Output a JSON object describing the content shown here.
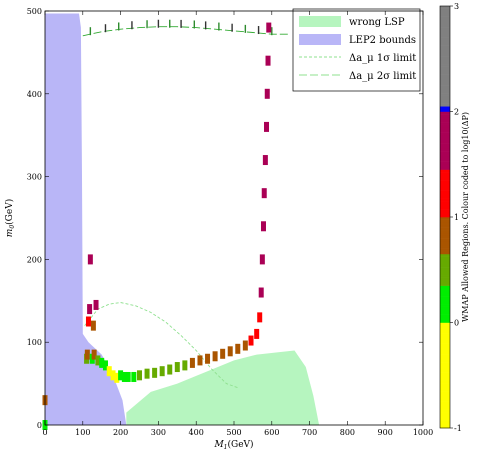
{
  "chart_data": {
    "type": "scatter",
    "xlabel": "M_{1}(GeV)",
    "ylabel": "m_{0}(GeV)",
    "xlim": [
      0,
      1000
    ],
    "ylim": [
      0,
      500
    ],
    "x_ticks": [
      "0",
      "100",
      "200",
      "300",
      "400",
      "500",
      "600",
      "700",
      "800",
      "900",
      "1000"
    ],
    "y_ticks": [
      "0",
      "100",
      "200",
      "300",
      "400",
      "500"
    ],
    "legend_position": "top-right",
    "legend": [
      {
        "label": "wrong LSP",
        "style": "fill",
        "color": "#b6f5bf"
      },
      {
        "label": "LEP2 bounds",
        "style": "fill",
        "color": "#b9b6f7"
      },
      {
        "label": "Δa_μ 1σ limit",
        "style": "dashed-short",
        "color": "#8fe08f"
      },
      {
        "label": "Δa_μ 2σ limit",
        "style": "dashed-long",
        "color": "#8fe08f"
      }
    ],
    "colorbar": {
      "label": "WMAP Allowed Regions. Colour coded to log10(ΔP)",
      "range": [
        -1,
        3
      ],
      "tick_labels": [
        "-1",
        "0",
        "1",
        "2",
        "3"
      ],
      "stops": [
        {
          "value": -1.0,
          "color": "#ffff00"
        },
        {
          "value": -0.001,
          "color": "#ffff00"
        },
        {
          "value": 0.0,
          "color": "#00ee00"
        },
        {
          "value": 0.35,
          "color": "#66aa00"
        },
        {
          "value": 0.65,
          "color": "#aa5500"
        },
        {
          "value": 1.0,
          "color": "#ff0000"
        },
        {
          "value": 1.45,
          "color": "#aa0055"
        },
        {
          "value": 1.99,
          "color": "#880088"
        },
        {
          "value": 2.0,
          "color": "#0000ff"
        },
        {
          "value": 2.05,
          "color": "#808080"
        },
        {
          "value": 3.0,
          "color": "#6e6e6e"
        }
      ]
    },
    "regions": {
      "lep2_bounds": {
        "color": "#b9b6f7",
        "outline": [
          [
            0,
            0
          ],
          [
            0,
            497
          ],
          [
            90,
            497
          ],
          [
            95,
            480
          ],
          [
            98,
            300
          ],
          [
            100,
            110
          ],
          [
            115,
            100
          ],
          [
            150,
            85
          ],
          [
            180,
            60
          ],
          [
            205,
            30
          ],
          [
            215,
            0
          ]
        ]
      },
      "wrong_lsp": {
        "color": "#b6f5bf",
        "outline": [
          [
            215,
            0
          ],
          [
            215,
            15
          ],
          [
            280,
            40
          ],
          [
            350,
            50
          ],
          [
            430,
            65
          ],
          [
            500,
            78
          ],
          [
            560,
            85
          ],
          [
            620,
            88
          ],
          [
            660,
            90
          ],
          [
            690,
            70
          ],
          [
            710,
            35
          ],
          [
            725,
            0
          ]
        ]
      }
    },
    "limits": {
      "one_sigma": [
        [
          105,
          120
        ],
        [
          140,
          140
        ],
        [
          170,
          146
        ],
        [
          200,
          148
        ],
        [
          240,
          144
        ],
        [
          280,
          136
        ],
        [
          320,
          124
        ],
        [
          360,
          108
        ],
        [
          400,
          90
        ],
        [
          440,
          68
        ],
        [
          480,
          50
        ],
        [
          510,
          45
        ]
      ],
      "two_sigma": [
        [
          100,
          470
        ],
        [
          150,
          475
        ],
        [
          200,
          478
        ],
        [
          250,
          480
        ],
        [
          300,
          481
        ],
        [
          350,
          481
        ],
        [
          400,
          480
        ],
        [
          450,
          478
        ],
        [
          500,
          476
        ],
        [
          550,
          474
        ],
        [
          600,
          472
        ],
        [
          650,
          472
        ]
      ],
      "two_sigma_ticks_x": [
        120,
        160,
        195,
        230,
        270,
        300,
        330,
        360,
        395,
        425,
        460,
        495,
        530,
        565,
        600
      ]
    },
    "wmap_points": [
      {
        "x": 110,
        "y": 80,
        "c": 0.6
      },
      {
        "x": 112,
        "y": 85,
        "c": 0.9
      },
      {
        "x": 115,
        "y": 125,
        "c": 1.2
      },
      {
        "x": 118,
        "y": 140,
        "c": 1.6
      },
      {
        "x": 120,
        "y": 200,
        "c": 1.9
      },
      {
        "x": 125,
        "y": 80,
        "c": 0.3
      },
      {
        "x": 128,
        "y": 120,
        "c": 1.0
      },
      {
        "x": 130,
        "y": 85,
        "c": 0.7
      },
      {
        "x": 135,
        "y": 145,
        "c": 1.7
      },
      {
        "x": 140,
        "y": 78,
        "c": 0.4
      },
      {
        "x": 150,
        "y": 75,
        "c": 0.2
      },
      {
        "x": 160,
        "y": 72,
        "c": 0.1
      },
      {
        "x": 170,
        "y": 65,
        "c": -0.5
      },
      {
        "x": 180,
        "y": 60,
        "c": -0.7
      },
      {
        "x": 190,
        "y": 57,
        "c": -0.6
      },
      {
        "x": 200,
        "y": 60,
        "c": 0.1
      },
      {
        "x": 210,
        "y": 58,
        "c": 0.05
      },
      {
        "x": 220,
        "y": 58,
        "c": 0.2
      },
      {
        "x": 235,
        "y": 58,
        "c": 0.3
      },
      {
        "x": 250,
        "y": 60,
        "c": 0.4
      },
      {
        "x": 270,
        "y": 62,
        "c": 0.45
      },
      {
        "x": 290,
        "y": 63,
        "c": 0.5
      },
      {
        "x": 310,
        "y": 65,
        "c": 0.5
      },
      {
        "x": 330,
        "y": 67,
        "c": 0.55
      },
      {
        "x": 350,
        "y": 70,
        "c": 0.6
      },
      {
        "x": 370,
        "y": 72,
        "c": 0.65
      },
      {
        "x": 390,
        "y": 75,
        "c": 0.7
      },
      {
        "x": 410,
        "y": 78,
        "c": 0.7
      },
      {
        "x": 430,
        "y": 80,
        "c": 0.75
      },
      {
        "x": 450,
        "y": 83,
        "c": 0.8
      },
      {
        "x": 470,
        "y": 86,
        "c": 0.85
      },
      {
        "x": 490,
        "y": 89,
        "c": 0.9
      },
      {
        "x": 510,
        "y": 92,
        "c": 0.95
      },
      {
        "x": 530,
        "y": 96,
        "c": 1.0
      },
      {
        "x": 545,
        "y": 102,
        "c": 1.1
      },
      {
        "x": 560,
        "y": 110,
        "c": 1.2
      },
      {
        "x": 568,
        "y": 130,
        "c": 1.3
      },
      {
        "x": 572,
        "y": 160,
        "c": 1.5
      },
      {
        "x": 575,
        "y": 200,
        "c": 1.6
      },
      {
        "x": 578,
        "y": 240,
        "c": 1.7
      },
      {
        "x": 580,
        "y": 280,
        "c": 1.8
      },
      {
        "x": 583,
        "y": 320,
        "c": 1.85
      },
      {
        "x": 586,
        "y": 360,
        "c": 1.9
      },
      {
        "x": 588,
        "y": 400,
        "c": 1.92
      },
      {
        "x": 590,
        "y": 440,
        "c": 1.95
      },
      {
        "x": 592,
        "y": 480,
        "c": 1.97
      },
      {
        "x": 0,
        "y": 30,
        "c": 0.7
      },
      {
        "x": 0,
        "y": 0,
        "c": 0.1
      }
    ]
  }
}
